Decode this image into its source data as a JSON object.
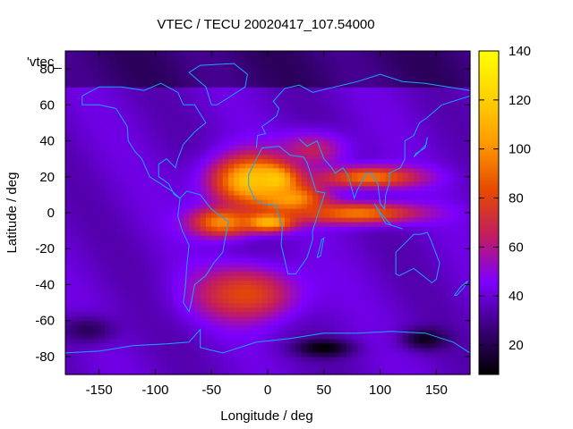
{
  "chart_data": {
    "type": "heatmap",
    "title": "VTEC / TECU 20020417_107.54000",
    "xlabel": "Longitude / deg",
    "ylabel": "Latitude / deg",
    "xlim": [
      -180,
      180
    ],
    "ylim": [
      -90,
      90
    ],
    "xticks": [
      -150,
      -100,
      -50,
      0,
      50,
      100,
      150
    ],
    "yticks": [
      -80,
      -60,
      -40,
      -20,
      0,
      20,
      40,
      60,
      80
    ],
    "colorbar": {
      "min": 8,
      "max": 140,
      "ticks": [
        20,
        40,
        60,
        80,
        100,
        120,
        140
      ]
    },
    "legend": "'vtec_",
    "coastline_color": "#1aa6ff",
    "colormap": [
      "#000000",
      "#3a007a",
      "#7d00ff",
      "#c21c60",
      "#e64a00",
      "#ff9a00",
      "#ffd200",
      "#ffff00"
    ],
    "features": [
      {
        "lon": 5,
        "lat": 18,
        "value": 138,
        "spread_lon": 18,
        "spread_lat": 8
      },
      {
        "lon": -15,
        "lat": 18,
        "value": 118,
        "spread_lon": 35,
        "spread_lat": 14
      },
      {
        "lon": 20,
        "lat": 8,
        "value": 105,
        "spread_lon": 30,
        "spread_lat": 8
      },
      {
        "lon": 0,
        "lat": -5,
        "value": 118,
        "spread_lon": 22,
        "spread_lat": 5
      },
      {
        "lon": -40,
        "lat": -5,
        "value": 100,
        "spread_lon": 28,
        "spread_lat": 8
      },
      {
        "lon": 90,
        "lat": 20,
        "value": 95,
        "spread_lon": 45,
        "spread_lat": 6
      },
      {
        "lon": 80,
        "lat": 0,
        "value": 95,
        "spread_lon": 55,
        "spread_lat": 6
      },
      {
        "lon": -20,
        "lat": -45,
        "value": 82,
        "spread_lon": 45,
        "spread_lat": 15
      },
      {
        "lon": 40,
        "lat": 35,
        "value": 65,
        "spread_lon": 30,
        "spread_lat": 10
      },
      {
        "lon": 50,
        "lat": -75,
        "value": 8,
        "spread_lon": 25,
        "spread_lat": 5
      },
      {
        "lon": 140,
        "lat": -70,
        "value": 12,
        "spread_lon": 20,
        "spread_lat": 6
      },
      {
        "lon": -160,
        "lat": -65,
        "value": 22,
        "spread_lon": 25,
        "spread_lat": 8
      }
    ]
  }
}
